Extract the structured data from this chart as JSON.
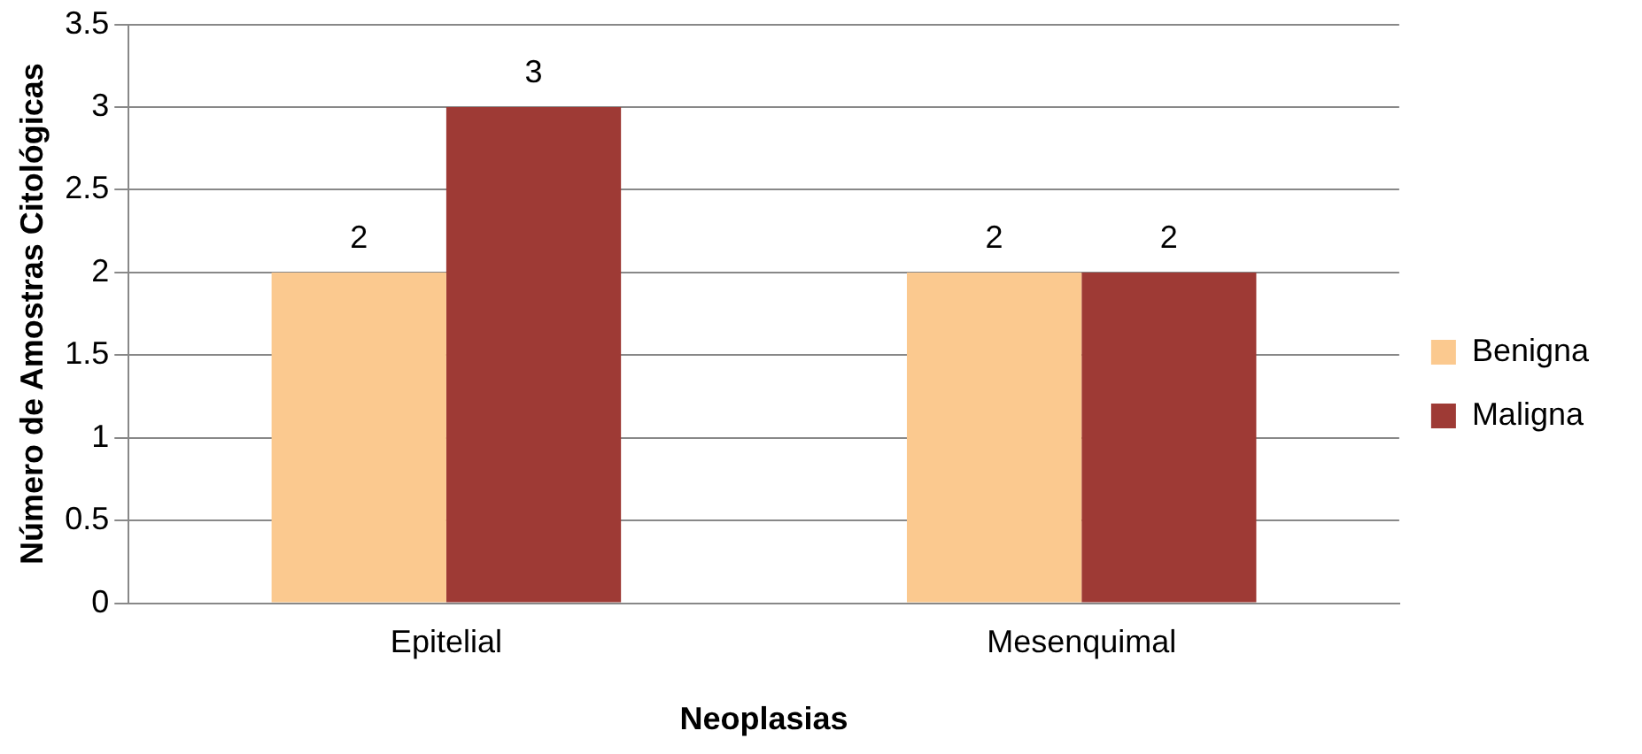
{
  "chart_data": {
    "type": "bar",
    "xlabel": "Neoplasias",
    "ylabel": "Número de Amostras Citológicas",
    "categories": [
      "Epitelial",
      "Mesenquimal"
    ],
    "series": [
      {
        "name": "Benigna",
        "color": "#fbc98f",
        "values": [
          2,
          2
        ]
      },
      {
        "name": "Maligna",
        "color": "#9e3a35",
        "values": [
          3,
          2
        ]
      }
    ],
    "ylim": [
      0,
      3.5
    ],
    "yticks": [
      0,
      {
        "value": 0.5,
        "label": "0.5"
      },
      1,
      {
        "value": 1.5,
        "label": "1.5"
      },
      2,
      {
        "value": 2.5,
        "label": "2.5"
      },
      3,
      {
        "value": 3.5,
        "label": "3.5"
      }
    ],
    "grid": "y",
    "legend": "right",
    "data_labels": true
  }
}
